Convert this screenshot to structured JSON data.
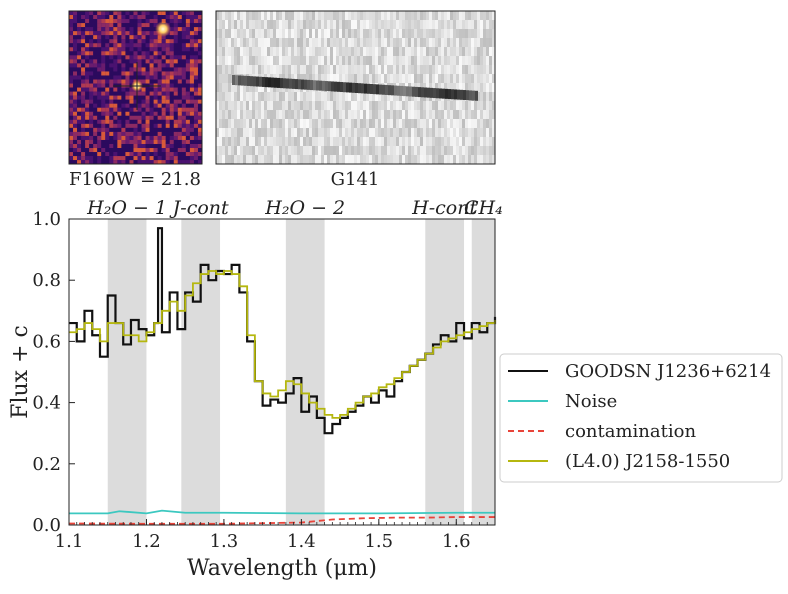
{
  "chart_data": {
    "type": "line",
    "xlabel": "Wavelength (μm)",
    "ylabel": "Flux + c",
    "xlim": [
      1.1,
      1.65
    ],
    "ylim": [
      0.0,
      1.0
    ],
    "xticks": [
      "1.1",
      "1.2",
      "1.3",
      "1.4",
      "1.5",
      "1.6"
    ],
    "yticks": [
      "0.0",
      "0.2",
      "0.4",
      "0.6",
      "0.8",
      "1.0"
    ],
    "grid": false,
    "legend_position": "right",
    "bands": [
      {
        "label": "H₂O − 1",
        "range": [
          1.15,
          1.2
        ]
      },
      {
        "label": "J-cont",
        "range": [
          1.245,
          1.295
        ]
      },
      {
        "label": "H₂O − 2",
        "range": [
          1.38,
          1.43
        ]
      },
      {
        "label": "H-cont",
        "range": [
          1.56,
          1.61
        ]
      },
      {
        "label": "CH₄",
        "range": [
          1.62,
          1.65
        ]
      }
    ],
    "series": [
      {
        "name": "GOODSN J1236+6214",
        "color": "#111111",
        "style": "solid",
        "x": [
          1.1,
          1.11,
          1.12,
          1.13,
          1.14,
          1.15,
          1.16,
          1.17,
          1.18,
          1.19,
          1.2,
          1.21,
          1.215,
          1.22,
          1.23,
          1.24,
          1.25,
          1.26,
          1.27,
          1.28,
          1.29,
          1.3,
          1.31,
          1.32,
          1.33,
          1.34,
          1.35,
          1.36,
          1.37,
          1.38,
          1.39,
          1.4,
          1.41,
          1.42,
          1.43,
          1.44,
          1.45,
          1.46,
          1.47,
          1.48,
          1.49,
          1.5,
          1.51,
          1.52,
          1.53,
          1.54,
          1.55,
          1.56,
          1.57,
          1.58,
          1.59,
          1.6,
          1.61,
          1.62,
          1.63,
          1.64,
          1.65
        ],
        "y": [
          0.66,
          0.6,
          0.7,
          0.62,
          0.55,
          0.75,
          0.66,
          0.59,
          0.67,
          0.64,
          0.62,
          0.66,
          0.97,
          0.63,
          0.76,
          0.64,
          0.76,
          0.73,
          0.85,
          0.8,
          0.83,
          0.82,
          0.85,
          0.76,
          0.6,
          0.47,
          0.39,
          0.41,
          0.4,
          0.43,
          0.48,
          0.37,
          0.42,
          0.35,
          0.3,
          0.33,
          0.35,
          0.37,
          0.39,
          0.42,
          0.4,
          0.44,
          0.42,
          0.47,
          0.5,
          0.52,
          0.54,
          0.56,
          0.59,
          0.62,
          0.6,
          0.66,
          0.61,
          0.66,
          0.63,
          0.66,
          0.68
        ]
      },
      {
        "name": "Noise",
        "color": "#3cc8c0",
        "style": "solid",
        "x": [
          1.1,
          1.15,
          1.165,
          1.2,
          1.22,
          1.25,
          1.3,
          1.4,
          1.5,
          1.6,
          1.65
        ],
        "y": [
          0.038,
          0.038,
          0.045,
          0.038,
          0.047,
          0.04,
          0.04,
          0.038,
          0.038,
          0.04,
          0.04
        ]
      },
      {
        "name": "contamination",
        "color": "#e8443a",
        "style": "dashed",
        "x": [
          1.1,
          1.2,
          1.3,
          1.4,
          1.44,
          1.48,
          1.52,
          1.56,
          1.6,
          1.65
        ],
        "y": [
          0.005,
          0.004,
          0.004,
          0.008,
          0.018,
          0.022,
          0.024,
          0.024,
          0.026,
          0.026
        ]
      },
      {
        "name": "(L4.0) J2158-1550",
        "color": "#b5b70f",
        "style": "solid",
        "x": [
          1.1,
          1.11,
          1.12,
          1.13,
          1.14,
          1.15,
          1.16,
          1.17,
          1.18,
          1.19,
          1.2,
          1.21,
          1.22,
          1.23,
          1.24,
          1.25,
          1.26,
          1.27,
          1.28,
          1.29,
          1.3,
          1.31,
          1.32,
          1.33,
          1.34,
          1.35,
          1.36,
          1.37,
          1.38,
          1.39,
          1.4,
          1.41,
          1.42,
          1.43,
          1.44,
          1.45,
          1.46,
          1.47,
          1.48,
          1.49,
          1.5,
          1.51,
          1.52,
          1.53,
          1.54,
          1.55,
          1.56,
          1.57,
          1.58,
          1.59,
          1.6,
          1.61,
          1.62,
          1.63,
          1.64,
          1.65
        ],
        "y": [
          0.63,
          0.64,
          0.66,
          0.64,
          0.6,
          0.66,
          0.66,
          0.62,
          0.62,
          0.6,
          0.63,
          0.66,
          0.7,
          0.73,
          0.7,
          0.75,
          0.79,
          0.82,
          0.83,
          0.82,
          0.83,
          0.82,
          0.78,
          0.62,
          0.47,
          0.43,
          0.42,
          0.44,
          0.47,
          0.46,
          0.43,
          0.4,
          0.38,
          0.36,
          0.35,
          0.36,
          0.38,
          0.4,
          0.42,
          0.43,
          0.45,
          0.46,
          0.48,
          0.5,
          0.52,
          0.54,
          0.56,
          0.58,
          0.6,
          0.61,
          0.62,
          0.63,
          0.64,
          0.65,
          0.66,
          0.67
        ]
      }
    ]
  },
  "panels": {
    "image_label": "F160W = 21.8",
    "spectrum_label": "G141"
  }
}
